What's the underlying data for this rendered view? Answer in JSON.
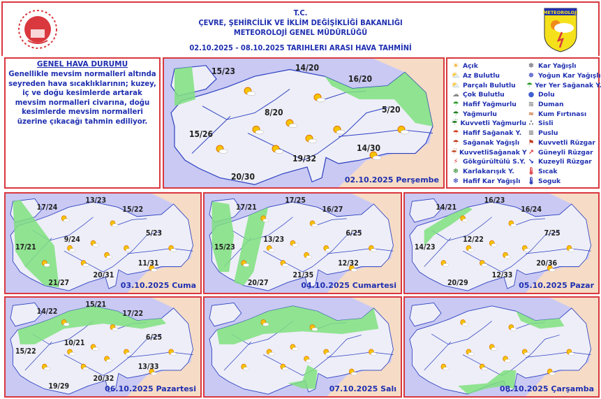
{
  "header": {
    "line1": "T.C.",
    "line2": "ÇEVRE, ŞEHİRCİLİK VE İKLİM DEĞİŞİKLİĞİ BAKANLIĞI",
    "line3": "METEOROLOJİ  GENEL  MÜDÜRLÜĞÜ",
    "line4": "02.10.2025  -  08.10.2025   TARIHLERI  ARASI  HAVA  TAHMİNİ",
    "logo_right_text": "METEOROLOJI"
  },
  "general": {
    "title": "GENEL HAVA DURUMU",
    "text": "Genellikle mevsim normalleri altında seyreden hava sıcaklıklarının; kuzey, iç ve doğu kesimlerde artarak mevsim normalleri civarına, doğu kesimlerde mevsim normalleri üzerine çıkacağı tahmin ediliyor."
  },
  "colors": {
    "border": "#d9383e",
    "text": "#1f2fb0",
    "sea": "#c9c9f3",
    "land": "#eeeef8",
    "rain_area": "#7fe07f",
    "outside": "#f6dcc6"
  },
  "legend": [
    {
      "icon": "sun",
      "label": "Açık"
    },
    {
      "icon": "few-clouds",
      "label": "Az Bulutlu"
    },
    {
      "icon": "partly-cloudy",
      "label": "Parçalı Bulutlu"
    },
    {
      "icon": "cloudy",
      "label": "Çok Bulutlu"
    },
    {
      "icon": "light-rain",
      "label": "Hafif Yağmurlu"
    },
    {
      "icon": "rain",
      "label": "Yağmurlu"
    },
    {
      "icon": "heavy-rain",
      "label": "Kuvvetli Yağmurlu"
    },
    {
      "icon": "light-shower",
      "label": "Hafif Sağanak Y."
    },
    {
      "icon": "shower",
      "label": "Sağanak Yağışlı"
    },
    {
      "icon": "heavy-shower",
      "label": "KuvvetliSağanak Y"
    },
    {
      "icon": "thunderstorm",
      "label": "Gökgürültülü S.Y."
    },
    {
      "icon": "sleet",
      "label": "Karlakarışık Y."
    },
    {
      "icon": "light-snow",
      "label": "Hafif Kar Yağışlı"
    },
    {
      "icon": "snow",
      "label": "Kar Yağışlı"
    },
    {
      "icon": "heavy-snow",
      "label": "Yoğun Kar Yağışlı"
    },
    {
      "icon": "local-shower",
      "label": "Yer Yer Sağanak Y."
    },
    {
      "icon": "hail",
      "label": "Dolu"
    },
    {
      "icon": "smoke",
      "label": "Duman"
    },
    {
      "icon": "sandstorm",
      "label": "Kum Fırtınası"
    },
    {
      "icon": "fog",
      "label": "Sisli"
    },
    {
      "icon": "haze",
      "label": "Puslu"
    },
    {
      "icon": "strong-wind",
      "label": "Kuvvetli Rüzgar"
    },
    {
      "icon": "south-wind",
      "label": "Güneyli Rüzgar"
    },
    {
      "icon": "north-wind",
      "label": "Kuzeyli Rüzgar"
    },
    {
      "icon": "hot",
      "label": "Sıcak"
    },
    {
      "icon": "cold",
      "label": "Soguk"
    }
  ],
  "maps": [
    {
      "date": "02.10.2025 Perşembe",
      "temps": [
        "15/23",
        "14/20",
        "16/20",
        "8/20",
        "5/20",
        "15/26",
        "19/32",
        "14/30",
        "20/30"
      ]
    },
    {
      "date": "03.10.2025 Cuma",
      "temps": [
        "17/24",
        "13/23",
        "15/22",
        "9/24",
        "5/23",
        "17/21",
        "11/31",
        "20/31",
        "21/27"
      ]
    },
    {
      "date": "04.10.2025 Cumartesi",
      "temps": [
        "17/21",
        "17/25",
        "16/27",
        "13/23",
        "6/25",
        "15/23",
        "12/32",
        "21/35",
        "20/27"
      ]
    },
    {
      "date": "05.10.2025 Pazar",
      "temps": [
        "14/21",
        "16/23",
        "16/24",
        "12/22",
        "7/25",
        "14/23",
        "20/36",
        "12/33",
        "20/29"
      ]
    },
    {
      "date": "06.10.2025 Pazartesi",
      "temps": [
        "14/22",
        "15/21",
        "17/22",
        "10/21",
        "6/25",
        "15/22",
        "13/33",
        "20/32",
        "19/29"
      ]
    },
    {
      "date": "07.10.2025 Salı",
      "temps": []
    },
    {
      "date": "08.10.2025 Çarşamba",
      "temps": []
    }
  ]
}
